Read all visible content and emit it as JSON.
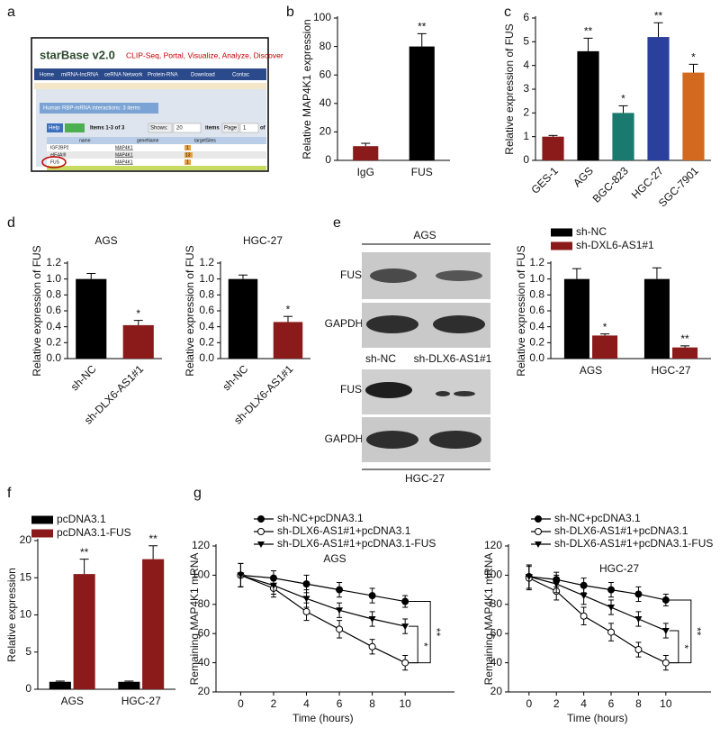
{
  "panel_a": {
    "label": "a",
    "logo": "starBase v2.0",
    "tagline": "CLIP-Seq, Portal, Visualize, Analyze, Discover",
    "menu": [
      "Home",
      "miRNA-lncRNA",
      "ceRNA Network",
      "Protein-RNA",
      "Download",
      "Contac"
    ],
    "tab": "Human RBP-mRNA interactions: 3 items",
    "toolbar": [
      "Help",
      "Items 1-3 of 3",
      "Shows:",
      "20",
      "items",
      "Page",
      "1",
      "of"
    ],
    "columns": [
      "name",
      "geneName",
      "targetSites"
    ],
    "rows": [
      [
        "IGF2BP2",
        "MAP4K1",
        "1"
      ],
      [
        "eIF4AIII",
        "MAP4K1",
        "13"
      ],
      [
        "FUS",
        "MAP4K1",
        "1"
      ]
    ]
  },
  "panel_e_blot": {
    "label": "e",
    "top_group": "AGS",
    "bottom_group": "HGC-27",
    "top_rows": [
      "FUS",
      "GAPDH"
    ],
    "bottom_rows": [
      "FUS",
      "GAPDH"
    ],
    "lanes": [
      "sh-NC",
      "sh-DLX6-AS1#1"
    ]
  },
  "chart_data": [
    {
      "type": "bar",
      "panel": "b",
      "ylabel": "Relative MAP4K1 expression",
      "categories": [
        "IgG",
        "FUS"
      ],
      "values": [
        10,
        80
      ],
      "errors": [
        2,
        9
      ],
      "colors": [
        "#8b1a1a",
        "#000000"
      ],
      "significance": [
        null,
        "**"
      ],
      "ylim": [
        0,
        100
      ],
      "yticks": [
        0,
        20,
        40,
        60,
        80,
        100
      ]
    },
    {
      "type": "bar",
      "panel": "c",
      "ylabel": "Relative expression of FUS",
      "categories": [
        "GES-1",
        "AGS",
        "BGC-823",
        "HGC-27",
        "SGC-7901"
      ],
      "values": [
        1,
        4.6,
        2.0,
        5.2,
        3.7
      ],
      "errors": [
        0.05,
        0.55,
        0.3,
        0.6,
        0.35
      ],
      "colors": [
        "#8b1a1a",
        "#000000",
        "#1b7a70",
        "#2b3f9c",
        "#d2691e"
      ],
      "significance": [
        null,
        "**",
        "*",
        "**",
        "*"
      ],
      "ylim": [
        0,
        6
      ],
      "yticks": [
        0,
        1,
        2,
        3,
        4,
        5,
        6
      ]
    },
    {
      "type": "bar",
      "panel": "d",
      "title": "AGS",
      "ylabel": "Relative expression of FUS",
      "categories": [
        "sh-NC",
        "sh-DLX6-AS1#1"
      ],
      "values": [
        1.0,
        0.42
      ],
      "errors": [
        0.07,
        0.06
      ],
      "colors": [
        "#000000",
        "#8b1a1a"
      ],
      "significance": [
        null,
        "*"
      ],
      "ylim": [
        0,
        1.2
      ],
      "yticks": [
        {
          "value": 0,
          "label": "0.0"
        },
        0.2,
        0.4,
        0.6,
        0.8,
        {
          "value": 1,
          "label": "1.0"
        },
        1.2
      ]
    },
    {
      "type": "bar",
      "title": "HGC-27",
      "ylabel": "Relative expression of FUS",
      "categories": [
        "sh-NC",
        "sh-DLX6-AS1#1"
      ],
      "values": [
        1.0,
        0.46
      ],
      "errors": [
        0.05,
        0.07
      ],
      "colors": [
        "#000000",
        "#8b1a1a"
      ],
      "significance": [
        null,
        "*"
      ],
      "ylim": [
        0,
        1.2
      ],
      "yticks": [
        {
          "value": 0,
          "label": "0.0"
        },
        0.2,
        0.4,
        0.6,
        0.8,
        {
          "value": 1,
          "label": "1.0"
        },
        1.2
      ]
    },
    {
      "type": "grouped_bar",
      "ylabel": "Relative expression of FUS",
      "categories": [
        "AGS",
        "HGC-27"
      ],
      "series": [
        {
          "name": "sh-NC",
          "color": "#000000",
          "values": [
            1.0,
            1.0
          ],
          "errors": [
            0.13,
            0.14
          ]
        },
        {
          "name": "sh-DXL6-AS1#1",
          "color": "#8b1a1a",
          "values": [
            0.29,
            0.14
          ],
          "errors": [
            0.02,
            0.02
          ],
          "significance": [
            "*",
            "**"
          ]
        }
      ],
      "ylim": [
        0,
        1.2
      ],
      "yticks": [
        {
          "value": 0,
          "label": "0.0"
        },
        0.2,
        0.4,
        0.6,
        0.8,
        {
          "value": 1,
          "label": "1.0"
        },
        1.2
      ]
    },
    {
      "type": "grouped_bar",
      "panel": "f",
      "ylabel": "Relative expression",
      "categories": [
        "AGS",
        "HGC-27"
      ],
      "series": [
        {
          "name": "pcDNA3.1",
          "color": "#000000",
          "values": [
            1,
            1
          ],
          "errors": [
            0.1,
            0.1
          ]
        },
        {
          "name": "pcDNA3.1-FUS",
          "color": "#8b1a1a",
          "values": [
            15.5,
            17.5
          ],
          "errors": [
            2.0,
            1.8
          ],
          "significance": [
            "**",
            "**"
          ]
        }
      ],
      "ylim": [
        0,
        20
      ],
      "yticks": [
        0,
        5,
        10,
        15,
        20
      ]
    },
    {
      "type": "line",
      "panel": "g",
      "title": "AGS",
      "xlabel": "Time (hours)",
      "ylabel": "Remaining MAP4K1 mRNA",
      "x": [
        0,
        2,
        4,
        6,
        8,
        10
      ],
      "xlim": [
        -1.5,
        13
      ],
      "xticks": [
        0,
        2,
        4,
        6,
        8,
        10
      ],
      "ylim": [
        20,
        120
      ],
      "yticks": [
        20,
        40,
        60,
        80,
        100,
        120
      ],
      "series": [
        {
          "name": "sh-NC+pcDNA3.1",
          "color": "#000000",
          "marker": "filled_circle",
          "values": [
            100,
            98,
            94,
            90,
            86,
            82
          ],
          "errors": [
            8,
            5,
            6,
            5,
            5,
            4
          ]
        },
        {
          "name": "sh-DLX6-AS1#1+pcDNA3.1",
          "color": "#000000",
          "marker": "open_circle",
          "values": [
            100,
            91,
            75,
            63,
            51,
            40
          ],
          "errors": [
            8,
            6,
            6,
            6,
            5,
            5
          ]
        },
        {
          "name": "sh-DLX6-AS1#1+pcDNA3.1-FUS",
          "color": "#000000",
          "marker": "triangle_down",
          "values": [
            100,
            93,
            84,
            76,
            70,
            65
          ],
          "errors": [
            8,
            6,
            6,
            5,
            5,
            5
          ]
        }
      ],
      "brackets": [
        "*",
        "**"
      ]
    },
    {
      "type": "line",
      "title": "HGC-27",
      "xlabel": "Time (hours)",
      "ylabel": "Remaining MAP4K1 mRNA",
      "x": [
        0,
        2,
        4,
        6,
        8,
        10
      ],
      "xlim": [
        -1.5,
        13.3
      ],
      "xticks": [
        0,
        2,
        4,
        6,
        8,
        10
      ],
      "ylim": [
        20,
        120
      ],
      "yticks": [
        20,
        40,
        60,
        80,
        100,
        120
      ],
      "series": [
        {
          "name": "sh-NC+pcDNA3.1",
          "color": "#000000",
          "marker": "filled_circle",
          "values": [
            99,
            97,
            93,
            90,
            87,
            83
          ],
          "errors": [
            8,
            5,
            5,
            5,
            5,
            4
          ]
        },
        {
          "name": "sh-DLX6-AS1#1+pcDNA3.1",
          "color": "#000000",
          "marker": "open_circle",
          "values": [
            98,
            89,
            72,
            61,
            49,
            40
          ],
          "errors": [
            8,
            6,
            6,
            6,
            5,
            5
          ]
        },
        {
          "name": "sh-DLX6-AS1#1+pcDNA3.1-FUS",
          "color": "#000000",
          "marker": "triangle_down",
          "values": [
            99,
            94,
            86,
            78,
            70,
            62
          ],
          "errors": [
            8,
            6,
            6,
            5,
            5,
            5
          ]
        }
      ],
      "brackets": [
        "*",
        "**"
      ]
    }
  ]
}
